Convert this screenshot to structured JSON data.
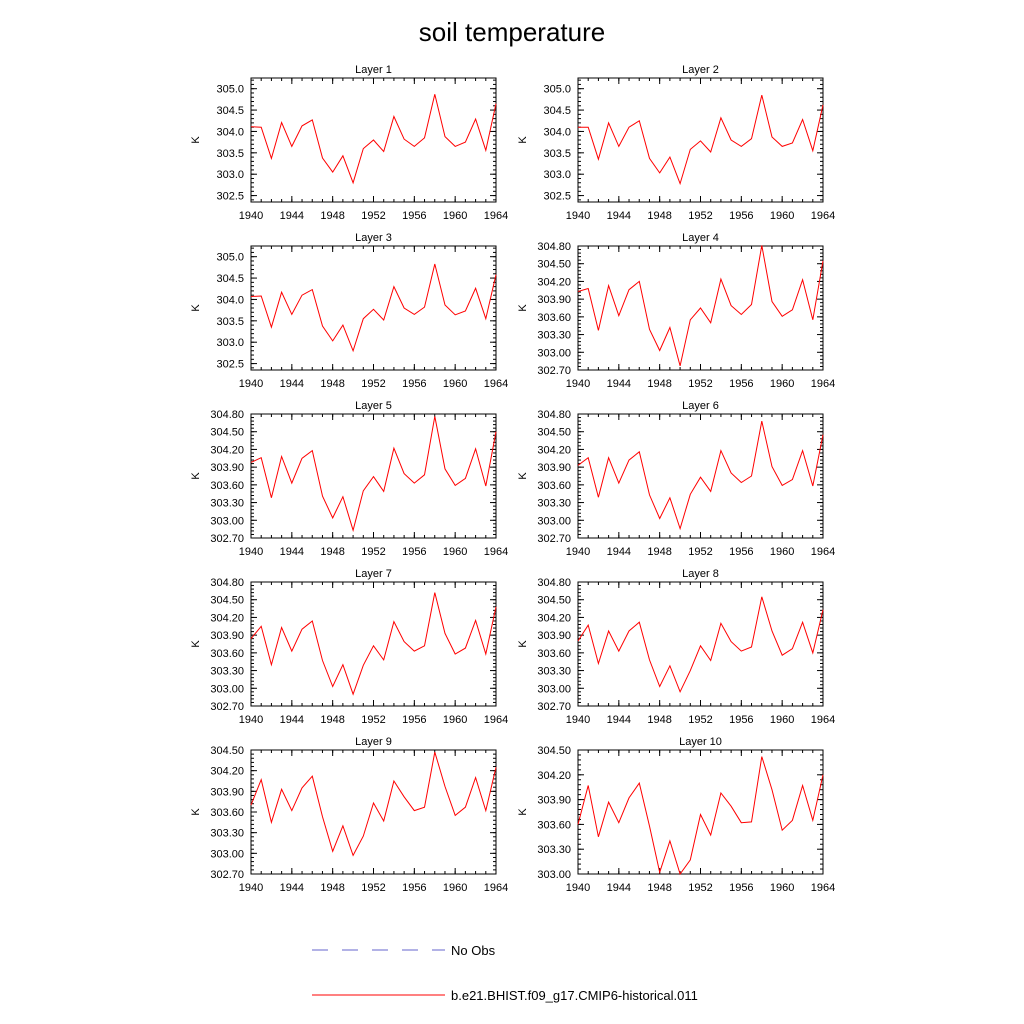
{
  "title": "soil temperature",
  "legend": {
    "entries": [
      {
        "label": "No Obs",
        "color": "#6666cc",
        "style": "dashed"
      },
      {
        "label": "b.e21.BHIST.f09_g17.CMIP6-historical.011",
        "color": "#ff0000",
        "style": "solid"
      }
    ],
    "placement": "bottom"
  },
  "chart_data": [
    {
      "type": "line",
      "title": "Layer 1",
      "ylabel": "K",
      "x": [
        1940,
        1941,
        1942,
        1943,
        1944,
        1945,
        1946,
        1947,
        1948,
        1949,
        1950,
        1951,
        1952,
        1953,
        1954,
        1955,
        1956,
        1957,
        1958,
        1959,
        1960,
        1961,
        1962,
        1963,
        1964
      ],
      "xticks": [
        1940,
        1944,
        1948,
        1952,
        1956,
        1960,
        1964
      ],
      "xlim": [
        1940,
        1964
      ],
      "ylim": [
        302.35,
        305.25
      ],
      "yticks": [
        302.5,
        303.0,
        303.5,
        304.0,
        304.5,
        305.0
      ],
      "yticklabels": [
        "302.5",
        "303.0",
        "303.5",
        "304.0",
        "304.5",
        "305.0"
      ],
      "series": [
        {
          "name": "b.e21.BHIST.f09_g17.CMIP6-historical.011",
          "color": "#ff0000",
          "values": [
            304.11,
            304.1,
            303.37,
            304.21,
            303.65,
            304.13,
            304.27,
            303.38,
            303.05,
            303.43,
            302.8,
            303.6,
            303.8,
            303.53,
            304.35,
            303.82,
            303.65,
            303.85,
            304.87,
            303.88,
            303.65,
            303.75,
            304.29,
            303.56,
            304.65
          ]
        }
      ]
    },
    {
      "type": "line",
      "title": "Layer 2",
      "ylabel": "K",
      "x": [
        1940,
        1941,
        1942,
        1943,
        1944,
        1945,
        1946,
        1947,
        1948,
        1949,
        1950,
        1951,
        1952,
        1953,
        1954,
        1955,
        1956,
        1957,
        1958,
        1959,
        1960,
        1961,
        1962,
        1963,
        1964
      ],
      "xticks": [
        1940,
        1944,
        1948,
        1952,
        1956,
        1960,
        1964
      ],
      "xlim": [
        1940,
        1964
      ],
      "ylim": [
        302.35,
        305.25
      ],
      "yticks": [
        302.5,
        303.0,
        303.5,
        304.0,
        304.5,
        305.0
      ],
      "yticklabels": [
        "302.5",
        "303.0",
        "303.5",
        "304.0",
        "304.5",
        "305.0"
      ],
      "series": [
        {
          "name": "b.e21.BHIST.f09_g17.CMIP6-historical.011",
          "color": "#ff0000",
          "values": [
            304.1,
            304.1,
            303.35,
            304.2,
            303.65,
            304.1,
            304.25,
            303.37,
            303.03,
            303.4,
            302.78,
            303.58,
            303.78,
            303.52,
            304.32,
            303.8,
            303.65,
            303.83,
            304.85,
            303.87,
            303.65,
            303.73,
            304.28,
            303.55,
            304.62
          ]
        }
      ]
    },
    {
      "type": "line",
      "title": "Layer 3",
      "ylabel": "K",
      "x": [
        1940,
        1941,
        1942,
        1943,
        1944,
        1945,
        1946,
        1947,
        1948,
        1949,
        1950,
        1951,
        1952,
        1953,
        1954,
        1955,
        1956,
        1957,
        1958,
        1959,
        1960,
        1961,
        1962,
        1963,
        1964
      ],
      "xticks": [
        1940,
        1944,
        1948,
        1952,
        1956,
        1960,
        1964
      ],
      "xlim": [
        1940,
        1964
      ],
      "ylim": [
        302.35,
        305.25
      ],
      "yticks": [
        302.5,
        303.0,
        303.5,
        304.0,
        304.5,
        305.0
      ],
      "yticklabels": [
        "302.5",
        "303.0",
        "303.5",
        "304.0",
        "304.5",
        "305.0"
      ],
      "series": [
        {
          "name": "b.e21.BHIST.f09_g17.CMIP6-historical.011",
          "color": "#ff0000",
          "values": [
            304.07,
            304.08,
            303.35,
            304.17,
            303.65,
            304.1,
            304.23,
            303.38,
            303.03,
            303.4,
            302.8,
            303.55,
            303.77,
            303.52,
            304.3,
            303.8,
            303.65,
            303.82,
            304.83,
            303.87,
            303.64,
            303.73,
            304.26,
            303.55,
            304.58
          ]
        }
      ]
    },
    {
      "type": "line",
      "title": "Layer 4",
      "ylabel": "K",
      "x": [
        1940,
        1941,
        1942,
        1943,
        1944,
        1945,
        1946,
        1947,
        1948,
        1949,
        1950,
        1951,
        1952,
        1953,
        1954,
        1955,
        1956,
        1957,
        1958,
        1959,
        1960,
        1961,
        1962,
        1963,
        1964
      ],
      "xticks": [
        1940,
        1944,
        1948,
        1952,
        1956,
        1960,
        1964
      ],
      "xlim": [
        1940,
        1964
      ],
      "ylim": [
        302.7,
        304.8
      ],
      "yticks": [
        302.7,
        303.0,
        303.3,
        303.6,
        303.9,
        304.2,
        304.5,
        304.8
      ],
      "yticklabels": [
        "302.70",
        "303.00",
        "303.30",
        "303.60",
        "303.90",
        "304.20",
        "304.50",
        "304.80"
      ],
      "series": [
        {
          "name": "b.e21.BHIST.f09_g17.CMIP6-historical.011",
          "color": "#ff0000",
          "values": [
            304.03,
            304.08,
            303.37,
            304.13,
            303.62,
            304.06,
            304.2,
            303.39,
            303.03,
            303.42,
            302.77,
            303.55,
            303.75,
            303.5,
            304.24,
            303.79,
            303.64,
            303.81,
            304.81,
            303.86,
            303.61,
            303.72,
            304.23,
            303.55,
            304.55
          ]
        }
      ]
    },
    {
      "type": "line",
      "title": "Layer 5",
      "ylabel": "K",
      "x": [
        1940,
        1941,
        1942,
        1943,
        1944,
        1945,
        1946,
        1947,
        1948,
        1949,
        1950,
        1951,
        1952,
        1953,
        1954,
        1955,
        1956,
        1957,
        1958,
        1959,
        1960,
        1961,
        1962,
        1963,
        1964
      ],
      "xticks": [
        1940,
        1944,
        1948,
        1952,
        1956,
        1960,
        1964
      ],
      "xlim": [
        1940,
        1964
      ],
      "ylim": [
        302.7,
        304.8
      ],
      "yticks": [
        302.7,
        303.0,
        303.3,
        303.6,
        303.9,
        304.2,
        304.5,
        304.8
      ],
      "yticklabels": [
        "302.70",
        "303.00",
        "303.30",
        "303.60",
        "303.90",
        "304.20",
        "304.50",
        "304.80"
      ],
      "series": [
        {
          "name": "b.e21.BHIST.f09_g17.CMIP6-historical.011",
          "color": "#ff0000",
          "values": [
            303.98,
            304.06,
            303.38,
            304.08,
            303.63,
            304.05,
            304.18,
            303.41,
            303.04,
            303.4,
            302.83,
            303.5,
            303.74,
            303.49,
            304.22,
            303.79,
            303.63,
            303.77,
            304.76,
            303.87,
            303.59,
            303.71,
            304.21,
            303.58,
            304.5
          ]
        }
      ]
    },
    {
      "type": "line",
      "title": "Layer 6",
      "ylabel": "K",
      "x": [
        1940,
        1941,
        1942,
        1943,
        1944,
        1945,
        1946,
        1947,
        1948,
        1949,
        1950,
        1951,
        1952,
        1953,
        1954,
        1955,
        1956,
        1957,
        1958,
        1959,
        1960,
        1961,
        1962,
        1963,
        1964
      ],
      "xticks": [
        1940,
        1944,
        1948,
        1952,
        1956,
        1960,
        1964
      ],
      "xlim": [
        1940,
        1964
      ],
      "ylim": [
        302.7,
        304.8
      ],
      "yticks": [
        302.7,
        303.0,
        303.3,
        303.6,
        303.9,
        304.2,
        304.5,
        304.8
      ],
      "yticklabels": [
        "302.70",
        "303.00",
        "303.30",
        "303.60",
        "303.90",
        "304.20",
        "304.50",
        "304.80"
      ],
      "series": [
        {
          "name": "b.e21.BHIST.f09_g17.CMIP6-historical.011",
          "color": "#ff0000",
          "values": [
            303.93,
            304.06,
            303.39,
            304.06,
            303.63,
            304.02,
            304.16,
            303.43,
            303.03,
            303.38,
            302.86,
            303.44,
            303.73,
            303.49,
            304.18,
            303.8,
            303.64,
            303.75,
            304.68,
            303.91,
            303.59,
            303.69,
            304.18,
            303.58,
            304.45
          ]
        }
      ]
    },
    {
      "type": "line",
      "title": "Layer 7",
      "ylabel": "K",
      "x": [
        1940,
        1941,
        1942,
        1943,
        1944,
        1945,
        1946,
        1947,
        1948,
        1949,
        1950,
        1951,
        1952,
        1953,
        1954,
        1955,
        1956,
        1957,
        1958,
        1959,
        1960,
        1961,
        1962,
        1963,
        1964
      ],
      "xticks": [
        1940,
        1944,
        1948,
        1952,
        1956,
        1960,
        1964
      ],
      "xlim": [
        1940,
        1964
      ],
      "ylim": [
        302.7,
        304.8
      ],
      "yticks": [
        302.7,
        303.0,
        303.3,
        303.6,
        303.9,
        304.2,
        304.5,
        304.8
      ],
      "yticklabels": [
        "302.70",
        "303.00",
        "303.30",
        "303.60",
        "303.90",
        "304.20",
        "304.50",
        "304.80"
      ],
      "series": [
        {
          "name": "b.e21.BHIST.f09_g17.CMIP6-historical.011",
          "color": "#ff0000",
          "values": [
            303.84,
            304.05,
            303.4,
            304.03,
            303.63,
            304.0,
            304.14,
            303.47,
            303.03,
            303.4,
            302.9,
            303.39,
            303.72,
            303.48,
            304.13,
            303.79,
            303.63,
            303.72,
            304.62,
            303.93,
            303.58,
            303.68,
            304.15,
            303.58,
            304.38
          ]
        }
      ]
    },
    {
      "type": "line",
      "title": "Layer 8",
      "ylabel": "K",
      "x": [
        1940,
        1941,
        1942,
        1943,
        1944,
        1945,
        1946,
        1947,
        1948,
        1949,
        1950,
        1951,
        1952,
        1953,
        1954,
        1955,
        1956,
        1957,
        1958,
        1959,
        1960,
        1961,
        1962,
        1963,
        1964
      ],
      "xticks": [
        1940,
        1944,
        1948,
        1952,
        1956,
        1960,
        1964
      ],
      "xlim": [
        1940,
        1964
      ],
      "ylim": [
        302.7,
        304.8
      ],
      "yticks": [
        302.7,
        303.0,
        303.3,
        303.6,
        303.9,
        304.2,
        304.5,
        304.8
      ],
      "yticklabels": [
        "302.70",
        "303.00",
        "303.30",
        "303.60",
        "303.90",
        "304.20",
        "304.50",
        "304.80"
      ],
      "series": [
        {
          "name": "b.e21.BHIST.f09_g17.CMIP6-historical.011",
          "color": "#ff0000",
          "values": [
            303.8,
            304.07,
            303.42,
            303.97,
            303.63,
            303.97,
            304.12,
            303.48,
            303.03,
            303.38,
            302.94,
            303.3,
            303.72,
            303.47,
            304.1,
            303.79,
            303.63,
            303.7,
            304.55,
            303.97,
            303.56,
            303.67,
            304.12,
            303.6,
            304.33
          ]
        }
      ]
    },
    {
      "type": "line",
      "title": "Layer 9",
      "ylabel": "K",
      "x": [
        1940,
        1941,
        1942,
        1943,
        1944,
        1945,
        1946,
        1947,
        1948,
        1949,
        1950,
        1951,
        1952,
        1953,
        1954,
        1955,
        1956,
        1957,
        1958,
        1959,
        1960,
        1961,
        1962,
        1963,
        1964
      ],
      "xticks": [
        1940,
        1944,
        1948,
        1952,
        1956,
        1960,
        1964
      ],
      "xlim": [
        1940,
        1964
      ],
      "ylim": [
        302.7,
        304.5
      ],
      "yticks": [
        302.7,
        303.0,
        303.3,
        303.6,
        303.9,
        304.2,
        304.5
      ],
      "yticklabels": [
        "302.70",
        "303.00",
        "303.30",
        "303.60",
        "303.90",
        "304.20",
        "304.50"
      ],
      "series": [
        {
          "name": "b.e21.BHIST.f09_g17.CMIP6-historical.011",
          "color": "#ff0000",
          "values": [
            303.7,
            304.07,
            303.45,
            303.93,
            303.62,
            303.95,
            304.12,
            303.53,
            303.03,
            303.4,
            302.97,
            303.25,
            303.73,
            303.47,
            304.05,
            303.82,
            303.62,
            303.67,
            304.47,
            303.97,
            303.55,
            303.67,
            304.1,
            303.62,
            304.25
          ]
        }
      ]
    },
    {
      "type": "line",
      "title": "Layer 10",
      "ylabel": "K",
      "x": [
        1940,
        1941,
        1942,
        1943,
        1944,
        1945,
        1946,
        1947,
        1948,
        1949,
        1950,
        1951,
        1952,
        1953,
        1954,
        1955,
        1956,
        1957,
        1958,
        1959,
        1960,
        1961,
        1962,
        1963,
        1964
      ],
      "xticks": [
        1940,
        1944,
        1948,
        1952,
        1956,
        1960,
        1964
      ],
      "xlim": [
        1940,
        1964
      ],
      "ylim": [
        303.0,
        304.5
      ],
      "yticks": [
        303.0,
        303.3,
        303.6,
        303.9,
        304.2,
        304.5
      ],
      "yticklabels": [
        "303.00",
        "303.30",
        "303.60",
        "303.90",
        "304.20",
        "304.50"
      ],
      "series": [
        {
          "name": "b.e21.BHIST.f09_g17.CMIP6-historical.011",
          "color": "#ff0000",
          "values": [
            303.6,
            304.07,
            303.45,
            303.87,
            303.62,
            303.92,
            304.1,
            303.58,
            303.02,
            303.4,
            303.0,
            303.17,
            303.72,
            303.47,
            303.98,
            303.82,
            303.62,
            303.63,
            304.42,
            304.02,
            303.53,
            303.65,
            304.07,
            303.65,
            304.2
          ]
        }
      ]
    }
  ]
}
